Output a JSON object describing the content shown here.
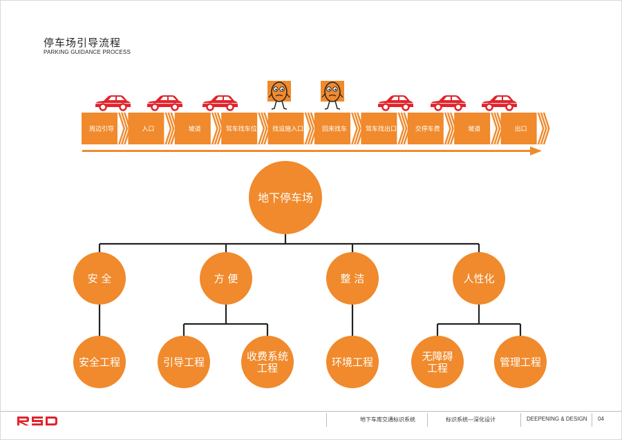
{
  "header": {
    "title": "停车场引导流程",
    "subtitle": "PARKING GUIDANCE PROCESS"
  },
  "flow": {
    "steps": [
      "周边引导",
      "入口",
      "坡道",
      "驾车找车位",
      "找设施入口",
      "回来找车",
      "驾车找出口",
      "交停车费",
      "坡道",
      "出口"
    ],
    "figures": [
      "car",
      "car",
      "car",
      "person",
      "person",
      "car",
      "car",
      "car"
    ]
  },
  "tree": {
    "root": "地下停车场",
    "branches": [
      {
        "label": "安 全",
        "children": [
          [
            "安全工程"
          ]
        ]
      },
      {
        "label": "方 便",
        "children": [
          [
            "引导工程"
          ],
          [
            "收费系统",
            "工程"
          ]
        ]
      },
      {
        "label": "整 洁",
        "children": [
          [
            "环境工程"
          ]
        ]
      },
      {
        "label": "人性化",
        "children": [
          [
            "无障碍",
            "工程"
          ],
          [
            "管理工程"
          ]
        ]
      }
    ]
  },
  "footer": {
    "logo": "RSD",
    "project": "地下车库交通标识系统",
    "section": "标识系统—深化设计",
    "stage": "DEEPENING & DESIGN",
    "page": "04"
  },
  "colors": {
    "orange": "#f08a2c",
    "car_red": "#e0242c",
    "line": "#222222"
  }
}
